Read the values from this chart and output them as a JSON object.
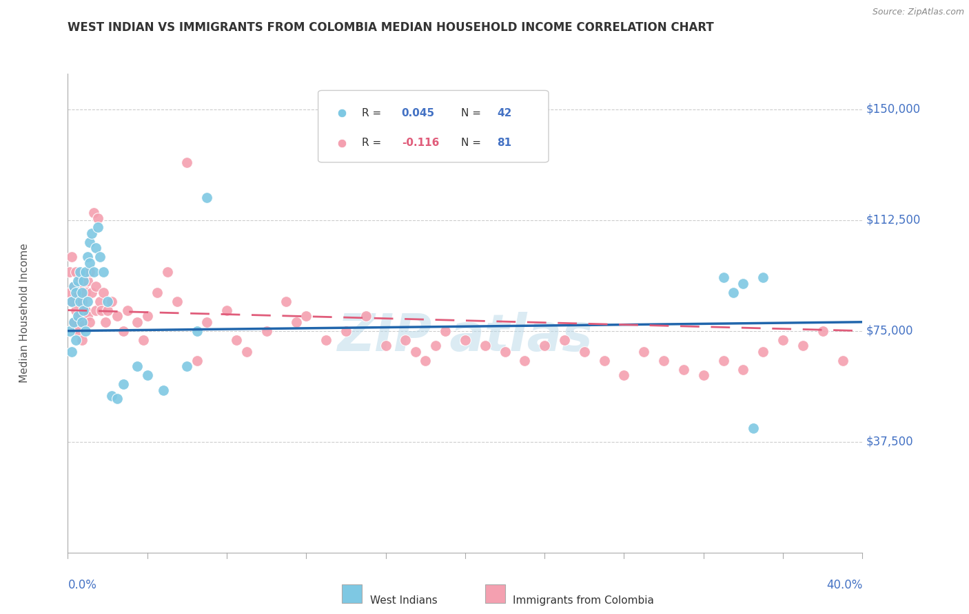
{
  "title": "WEST INDIAN VS IMMIGRANTS FROM COLOMBIA MEDIAN HOUSEHOLD INCOME CORRELATION CHART",
  "source": "Source: ZipAtlas.com",
  "ylabel": "Median Household Income",
  "xmin": 0.0,
  "xmax": 0.4,
  "ymin": 0,
  "ymax": 162000,
  "series1_color": "#7ec8e3",
  "series2_color": "#f4a0b0",
  "trend1_color": "#2166ac",
  "trend2_color": "#e05c7a",
  "axis_color": "#4472c4",
  "grid_color": "#cccccc",
  "background_color": "#ffffff",
  "title_color": "#333333",
  "watermark_color": "#b8d8e8",
  "wi_R": 0.045,
  "wi_N": 42,
  "col_R": -0.116,
  "col_N": 81,
  "ytick_vals": [
    37500,
    75000,
    112500,
    150000
  ],
  "ytick_labels": [
    "$37,500",
    "$75,000",
    "$112,500",
    "$150,000"
  ],
  "west_indians_x": [
    0.001,
    0.002,
    0.002,
    0.003,
    0.003,
    0.004,
    0.004,
    0.005,
    0.005,
    0.006,
    0.006,
    0.007,
    0.007,
    0.008,
    0.008,
    0.009,
    0.009,
    0.01,
    0.01,
    0.011,
    0.011,
    0.012,
    0.013,
    0.014,
    0.015,
    0.016,
    0.018,
    0.02,
    0.022,
    0.025,
    0.028,
    0.035,
    0.04,
    0.048,
    0.06,
    0.065,
    0.07,
    0.33,
    0.335,
    0.34,
    0.345,
    0.35
  ],
  "west_indians_y": [
    75000,
    68000,
    85000,
    90000,
    78000,
    72000,
    88000,
    80000,
    92000,
    85000,
    95000,
    78000,
    88000,
    82000,
    92000,
    95000,
    75000,
    100000,
    85000,
    98000,
    105000,
    108000,
    95000,
    103000,
    110000,
    100000,
    95000,
    85000,
    53000,
    52000,
    57000,
    63000,
    60000,
    55000,
    63000,
    75000,
    120000,
    93000,
    88000,
    91000,
    42000,
    93000
  ],
  "colombia_x": [
    0.001,
    0.001,
    0.002,
    0.002,
    0.003,
    0.003,
    0.004,
    0.004,
    0.005,
    0.005,
    0.006,
    0.006,
    0.007,
    0.007,
    0.008,
    0.008,
    0.009,
    0.009,
    0.01,
    0.01,
    0.011,
    0.011,
    0.012,
    0.013,
    0.014,
    0.014,
    0.015,
    0.016,
    0.017,
    0.018,
    0.019,
    0.02,
    0.022,
    0.025,
    0.028,
    0.03,
    0.035,
    0.038,
    0.04,
    0.045,
    0.05,
    0.055,
    0.06,
    0.065,
    0.07,
    0.08,
    0.085,
    0.09,
    0.1,
    0.11,
    0.115,
    0.12,
    0.13,
    0.14,
    0.15,
    0.16,
    0.17,
    0.175,
    0.18,
    0.185,
    0.19,
    0.2,
    0.21,
    0.22,
    0.23,
    0.24,
    0.25,
    0.26,
    0.27,
    0.28,
    0.29,
    0.3,
    0.31,
    0.32,
    0.33,
    0.34,
    0.35,
    0.36,
    0.37,
    0.38,
    0.39
  ],
  "colombia_y": [
    88000,
    95000,
    85000,
    100000,
    90000,
    78000,
    95000,
    82000,
    88000,
    75000,
    92000,
    80000,
    85000,
    72000,
    90000,
    78000,
    88000,
    82000,
    92000,
    80000,
    95000,
    78000,
    88000,
    115000,
    82000,
    90000,
    113000,
    85000,
    82000,
    88000,
    78000,
    82000,
    85000,
    80000,
    75000,
    82000,
    78000,
    72000,
    80000,
    88000,
    95000,
    85000,
    132000,
    65000,
    78000,
    82000,
    72000,
    68000,
    75000,
    85000,
    78000,
    80000,
    72000,
    75000,
    80000,
    70000,
    72000,
    68000,
    65000,
    70000,
    75000,
    72000,
    70000,
    68000,
    65000,
    70000,
    72000,
    68000,
    65000,
    60000,
    68000,
    65000,
    62000,
    60000,
    65000,
    62000,
    68000,
    72000,
    70000,
    75000,
    65000
  ]
}
